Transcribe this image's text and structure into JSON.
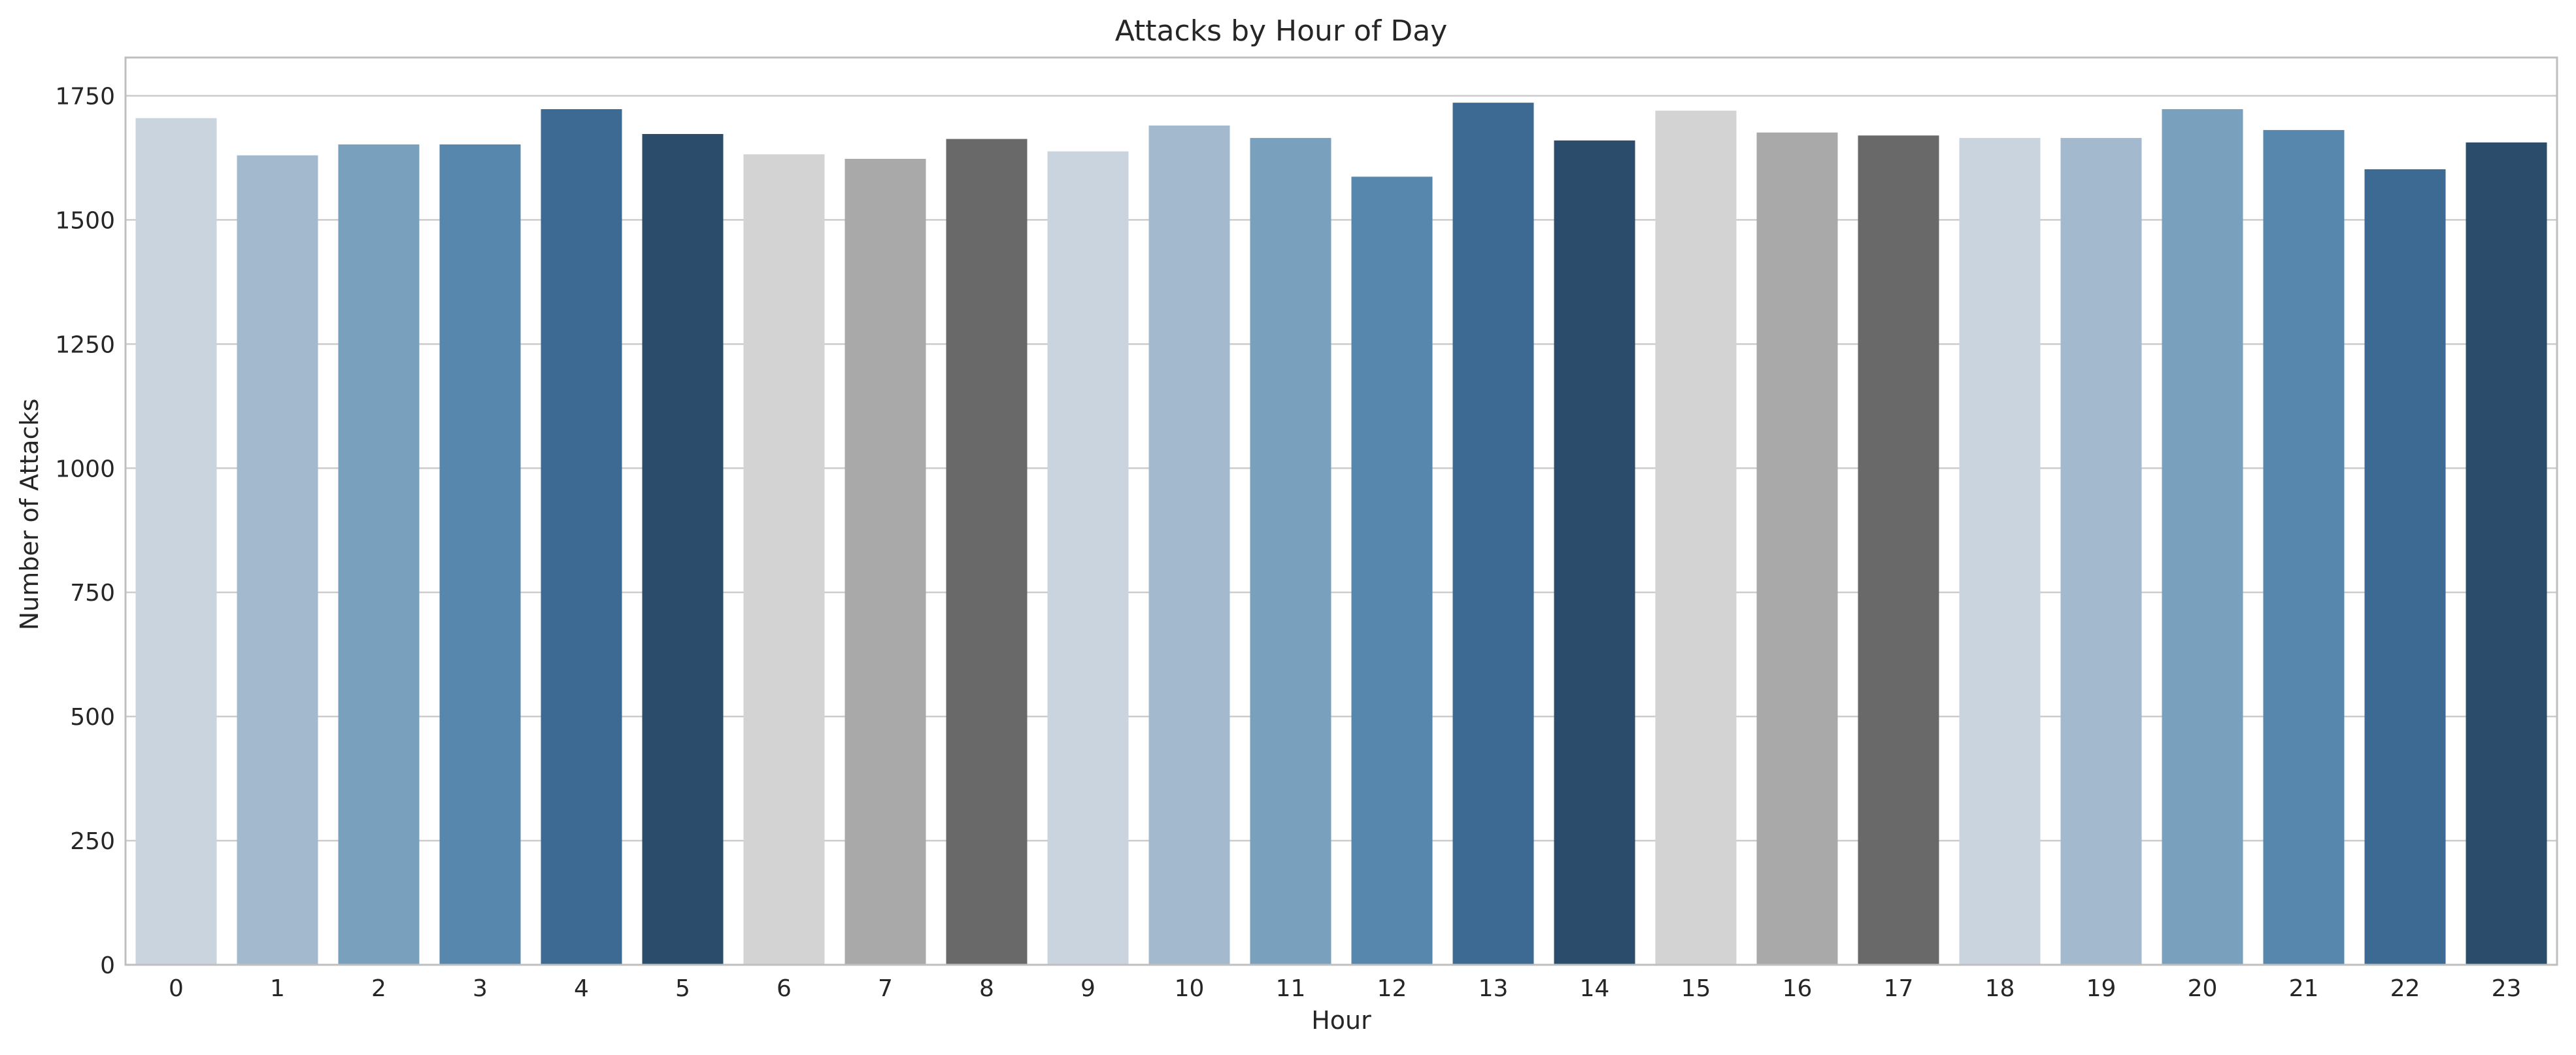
{
  "chart_data": {
    "type": "bar",
    "title": "Attacks by Hour of Day",
    "xlabel": "Hour",
    "ylabel": "Number of Attacks",
    "categories": [
      "0",
      "1",
      "2",
      "3",
      "4",
      "5",
      "6",
      "7",
      "8",
      "9",
      "10",
      "11",
      "12",
      "13",
      "14",
      "15",
      "16",
      "17",
      "18",
      "19",
      "20",
      "21",
      "22",
      "23"
    ],
    "values": [
      1705,
      1630,
      1652,
      1652,
      1723,
      1673,
      1632,
      1623,
      1663,
      1638,
      1690,
      1665,
      1587,
      1736,
      1660,
      1720,
      1676,
      1670,
      1665,
      1665,
      1723,
      1681,
      1602,
      1656
    ],
    "ylim": [
      0,
      1827
    ],
    "yticks": [
      "0",
      "250",
      "500",
      "750",
      "1000",
      "1250",
      "1500",
      "1750"
    ],
    "grid": "horizontal",
    "colors": [
      "#c9d4df",
      "#a3b9ce",
      "#79a0bc",
      "#5787ac",
      "#3d6a92",
      "#2b4c6a",
      "#d3d3d3",
      "#a9a9a9",
      "#696969",
      "#c9d4df",
      "#a3b9ce",
      "#79a0bc",
      "#5787ac",
      "#3d6a92",
      "#2b4c6a",
      "#d3d3d3",
      "#a9a9a9",
      "#696969",
      "#c9d4df",
      "#a3b9ce",
      "#79a0bc",
      "#5787ac",
      "#3d6a92",
      "#2b4c6a"
    ],
    "gridColor": "#cccccc",
    "frameColor": "#bfbfbf"
  }
}
